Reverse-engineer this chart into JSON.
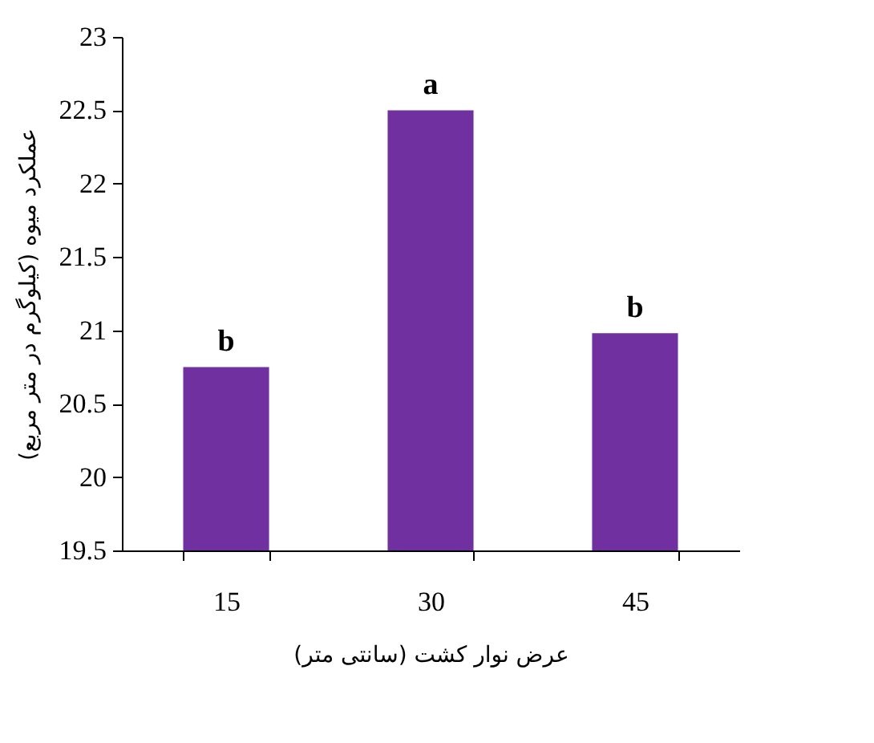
{
  "chart_data": {
    "type": "bar",
    "categories": [
      "15",
      "30",
      "45"
    ],
    "values": [
      20.75,
      22.5,
      20.98
    ],
    "color": "#7030a0",
    "ylim": [
      19.5,
      23
    ],
    "yticks": [
      19.5,
      20,
      20.5,
      21,
      21.5,
      22,
      22.5,
      23
    ],
    "grid": false,
    "xlabel": "عرض نوار کشت (سانتی متر)",
    "ylabel": "عملکرد میوه (کیلوگرم در متر مربع)",
    "annotations": [
      {
        "text": "b",
        "x": "15",
        "y": 20.75
      },
      {
        "text": "a",
        "x": "30",
        "y": 22.5
      },
      {
        "text": "b",
        "x": "45",
        "y": 20.98
      }
    ]
  }
}
